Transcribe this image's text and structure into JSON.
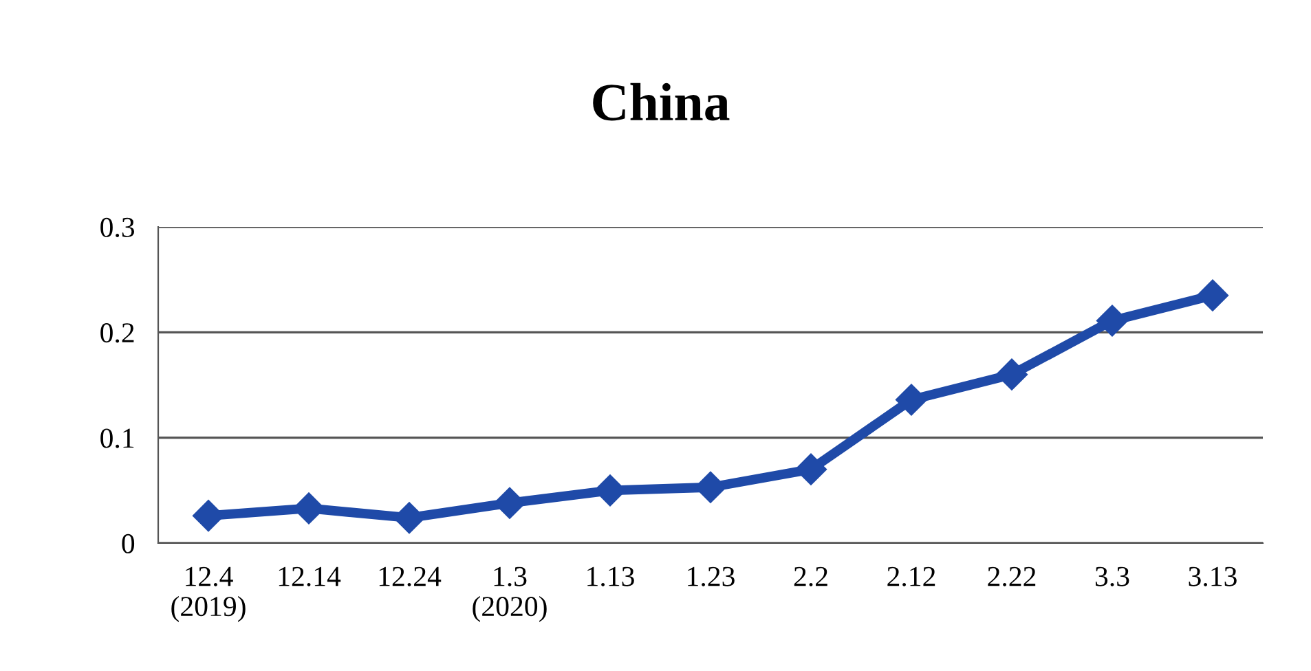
{
  "chart_data": {
    "type": "line",
    "title": "China",
    "categories": [
      "12.4\n(2019)",
      "12.14",
      "12.24",
      "1.3\n(2020)",
      "1.13",
      "1.23",
      "2.2",
      "2.12",
      "2.22",
      "3.3",
      "3.13"
    ],
    "series": [
      {
        "color": "#1f4aa8",
        "values": [
          0.026,
          0.033,
          0.024,
          0.038,
          0.05,
          0.053,
          0.07,
          0.136,
          0.16,
          0.211,
          0.235
        ]
      }
    ],
    "ylim": [
      0,
      0.3
    ],
    "yticks": [
      {
        "value": 0,
        "label": "0"
      },
      0.1,
      0.2,
      0.3
    ],
    "grid": "y",
    "marker": "diamond",
    "line_style": "solid",
    "legend": false
  }
}
